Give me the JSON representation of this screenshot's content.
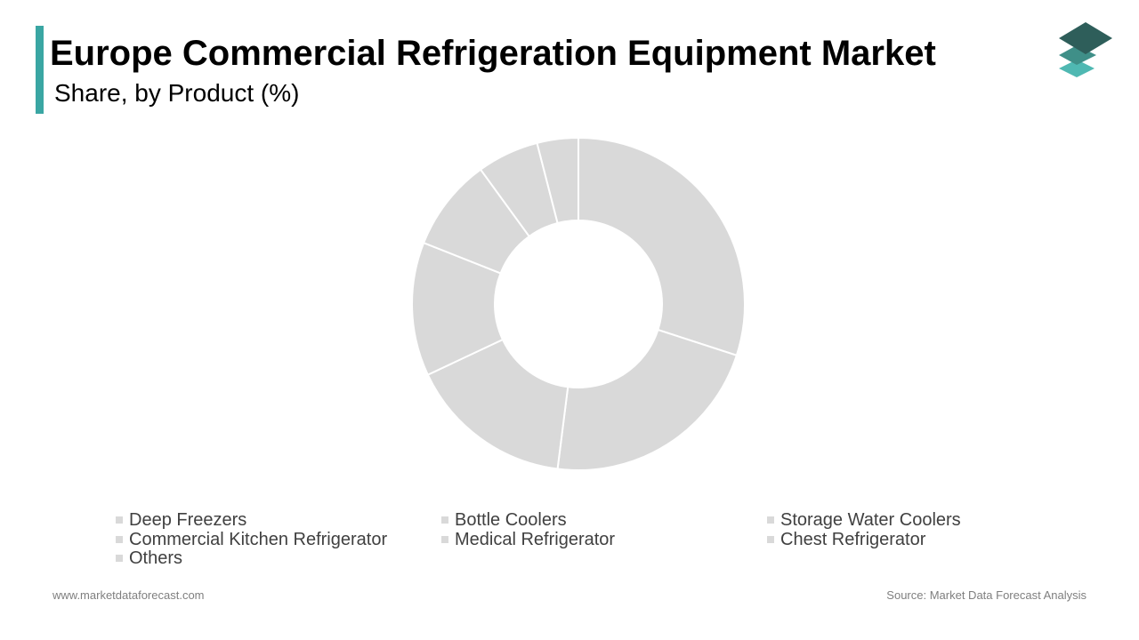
{
  "header": {
    "title": "Europe Commercial Refrigeration Equipment Market",
    "subtitle": "Share, by Product (%)"
  },
  "colors": {
    "accent": "#3aa6a3",
    "slice": "#d9d9d9",
    "slice_border": "#ffffff",
    "legend_swatch": "#d9d9d9",
    "logo_top": "#2e5e5a",
    "logo_mid": "#3f8f88",
    "logo_bottom": "#4fb8b2"
  },
  "logo": {
    "icon": "stacked-layers-icon"
  },
  "chart_data": {
    "type": "pie",
    "donut": true,
    "title": "Europe Commercial Refrigeration Equipment Market",
    "subtitle": "Share, by Product (%)",
    "legend_position": "bottom",
    "categories": [
      "Deep Freezers",
      "Bottle Coolers",
      "Storage Water Coolers",
      "Commercial Kitchen Refrigerator",
      "Medical Refrigerator",
      "Chest Refrigerator",
      "Others"
    ],
    "values": [
      30,
      22,
      16,
      13,
      9,
      6,
      4
    ]
  },
  "footer": {
    "website": "www.marketdataforecast.com",
    "source": "Source: Market Data Forecast Analysis"
  }
}
